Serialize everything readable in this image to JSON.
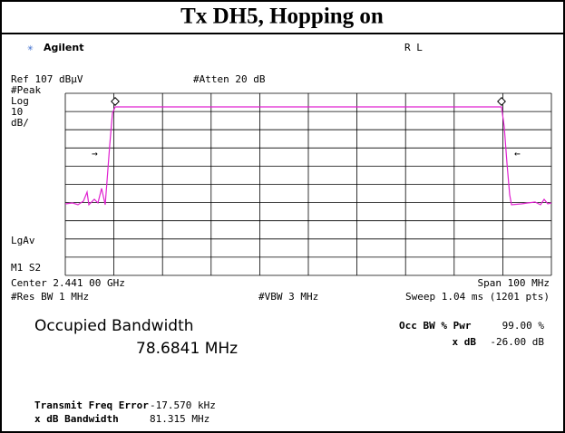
{
  "header": {
    "title": "Tx DH5, Hopping on"
  },
  "screen": {
    "brand": "Agilent",
    "mode": "R L",
    "top_left": [
      "Ref 107 dBµV",
      "#Peak",
      "Log",
      "10",
      "dB/"
    ],
    "atten": "#Atten 20 dB",
    "side": [
      "LgAv",
      "M1  S2"
    ],
    "center": "Center 2.441 00 GHz",
    "span": "Span 100 MHz",
    "rbw": "#Res BW 1 MHz",
    "vbw": "#VBW 3 MHz",
    "sweep": "Sweep 1.04 ms (1201 pts)",
    "occ_title": "Occupied Bandwidth",
    "occ_value": "78.6841 MHz",
    "occ_pwr_label": "Occ BW % Pwr",
    "occ_pwr_value": "99.00 %",
    "xdb_label": "x dB",
    "xdb_value": "-26.00 dB",
    "freq_err_label": "Transmit Freq Error",
    "freq_err_value": "-17.570 kHz",
    "xdb_bw_label": "x dB Bandwidth",
    "xdb_bw_value": "81.315 MHz"
  }
}
